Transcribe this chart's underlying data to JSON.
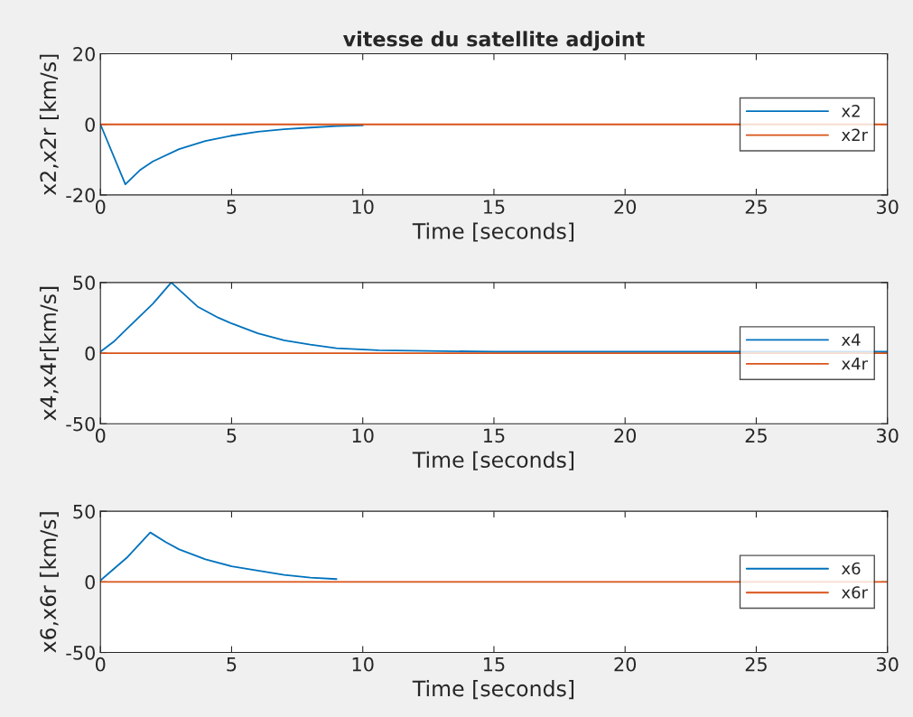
{
  "chart_data": [
    {
      "type": "line",
      "title": "vitesse du satellite adjoint",
      "xlabel": "Time [seconds]",
      "ylabel": "x2,x2r [km/s]",
      "xlim": [
        0,
        30
      ],
      "xticks": [
        0,
        5,
        10,
        15,
        20,
        25,
        30
      ],
      "ylim": [
        -20,
        20
      ],
      "yticks": [
        -20,
        0,
        20
      ],
      "legend": "right",
      "grid": false,
      "series": [
        {
          "name": "x2",
          "color": "#0072bd",
          "x": [
            0,
            0.95,
            1.5,
            2,
            3,
            4,
            5,
            6,
            7,
            8,
            9,
            10
          ],
          "values": [
            0,
            -17,
            -13,
            -10.5,
            -7,
            -4.7,
            -3.2,
            -2.1,
            -1.4,
            -0.9,
            -0.5,
            -0.3
          ]
        },
        {
          "name": "x2r",
          "color": "#d95319",
          "x": [
            0,
            30
          ],
          "values": [
            0,
            0
          ]
        }
      ]
    },
    {
      "type": "line",
      "xlabel": "Time [seconds]",
      "ylabel": "x4,x4r[km/s]",
      "xlim": [
        0,
        30
      ],
      "xticks": [
        0,
        5,
        10,
        15,
        20,
        25,
        30
      ],
      "ylim": [
        -50,
        50
      ],
      "yticks": [
        -50,
        0,
        50
      ],
      "legend": "right",
      "grid": false,
      "series": [
        {
          "name": "x4",
          "color": "#0072bd",
          "x": [
            0,
            0.5,
            1,
            2,
            2.7,
            3.7,
            4.5,
            5,
            6,
            7,
            8,
            9,
            10.6,
            15,
            30
          ],
          "values": [
            1,
            8,
            17,
            35,
            50,
            33,
            25,
            21,
            14,
            9,
            6,
            3.5,
            2,
            1,
            1
          ]
        },
        {
          "name": "x4r",
          "color": "#d95319",
          "x": [
            0,
            30
          ],
          "values": [
            0,
            0
          ]
        }
      ]
    },
    {
      "type": "line",
      "xlabel": "Time [seconds]",
      "ylabel": "x6,x6r [km/s]",
      "xlim": [
        0,
        30
      ],
      "xticks": [
        0,
        5,
        10,
        15,
        20,
        25,
        30
      ],
      "ylim": [
        -50,
        50
      ],
      "yticks": [
        -50,
        0,
        50
      ],
      "legend": "right",
      "grid": false,
      "series": [
        {
          "name": "x6",
          "color": "#0072bd",
          "x": [
            0,
            0.5,
            1,
            1.9,
            2.5,
            3,
            4,
            5,
            6,
            7,
            8,
            9
          ],
          "values": [
            1,
            9,
            17,
            35,
            28,
            23,
            16,
            11,
            8,
            5,
            3,
            2
          ]
        },
        {
          "name": "x6r",
          "color": "#d95319",
          "x": [
            0,
            30
          ],
          "values": [
            0,
            0
          ]
        }
      ]
    }
  ]
}
